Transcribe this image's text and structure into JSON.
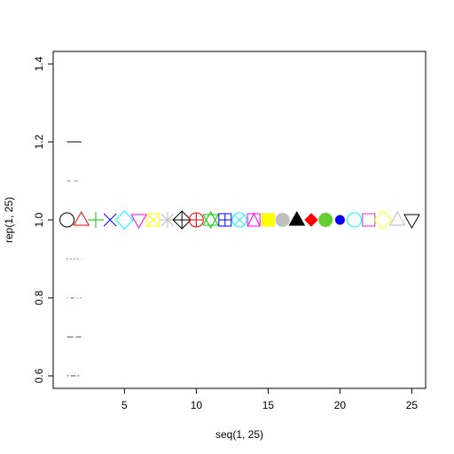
{
  "chart_data": {
    "type": "scatter",
    "xlabel": "seq(1, 25)",
    "ylabel": "rep(1, 25)",
    "x": [
      1,
      2,
      3,
      4,
      5,
      6,
      7,
      8,
      9,
      10,
      11,
      12,
      13,
      14,
      15,
      16,
      17,
      18,
      19,
      20,
      21,
      22,
      23,
      24,
      25
    ],
    "series": [
      {
        "values": [
          1,
          1,
          1,
          1,
          1,
          1,
          1,
          1,
          1,
          1,
          1,
          1,
          1,
          1,
          1,
          1,
          1,
          1,
          1,
          1,
          1,
          1,
          1,
          1,
          1
        ],
        "shapes": [
          "circle",
          "triangle",
          "plus",
          "cross",
          "diamond",
          "triangle-down",
          "square-cross",
          "asterisk",
          "diamond-plus",
          "circle-plus",
          "star",
          "square-plus",
          "circle-cross",
          "square-triangle",
          "square-filled",
          "circle-filled",
          "triangle-filled",
          "diamond-filled",
          "circle-solid",
          "dot",
          "circle",
          "square",
          "diamond",
          "triangle",
          "triangle-down"
        ],
        "colors": [
          "#000000",
          "#ff0000",
          "#00cd00",
          "#0000ff",
          "#00ffff",
          "#ff00ff",
          "#ffff00",
          "#bebebe",
          "#000000",
          "#ff0000",
          "#00cd00",
          "#0000ff",
          "#00ffff",
          "#ff00ff",
          "#ffff00",
          "#bebebe",
          "#000000",
          "#ff0000",
          "#66cc33",
          "#0000ff",
          "#00ffff",
          "#cc33cc",
          "#ffff00",
          "#bebebe",
          "#000000"
        ]
      }
    ],
    "segments": [
      {
        "y": 1.2,
        "x": [
          1,
          2
        ],
        "dash": "solid",
        "color": "#000000"
      },
      {
        "y": 1.1,
        "x": [
          1,
          2
        ],
        "dash": "dashed",
        "color": "#888888"
      },
      {
        "y": 0.9,
        "x": [
          1,
          2
        ],
        "dash": "dotted",
        "color": "#000000"
      },
      {
        "y": 0.8,
        "x": [
          1,
          2
        ],
        "dash": "dotdash",
        "color": "#555555"
      },
      {
        "y": 0.7,
        "x": [
          1,
          2
        ],
        "dash": "longdash",
        "color": "#555555"
      },
      {
        "y": 0.6,
        "x": [
          1,
          2
        ],
        "dash": "twodash",
        "color": "#555555"
      }
    ],
    "xlim": [
      0.04,
      25.96
    ],
    "ylim": [
      0.568,
      1.432
    ],
    "xticks": [
      5,
      10,
      15,
      20,
      25
    ],
    "yticks": [
      0.6,
      0.8,
      {
        "value": 1,
        "label": "1.0"
      },
      1.2,
      1.4
    ]
  }
}
